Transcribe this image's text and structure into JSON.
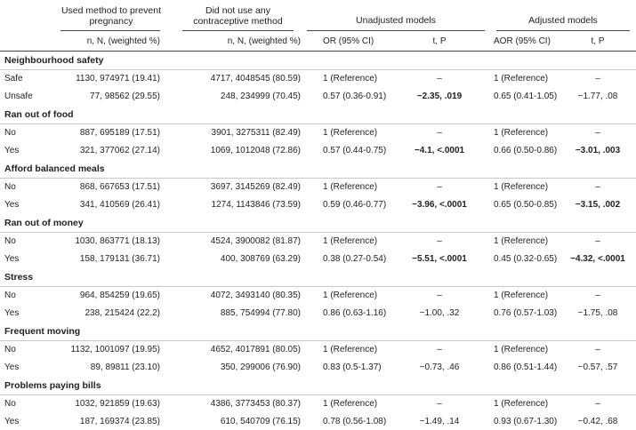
{
  "header": {
    "groups": [
      "Used method to prevent pregnancy",
      "Did not use any contraceptive method",
      "Unadjusted models",
      "Adjusted models"
    ],
    "columns": [
      "n, N, (weighted %)",
      "n, N, (weighted %)",
      "OR (95% CI)",
      "t, P",
      "AOR (95% CI)",
      "t, P"
    ]
  },
  "sections": [
    {
      "title": "Neighbourhood safety",
      "rows": [
        {
          "label": "Safe",
          "cells": [
            "1130, 974971 (19.41)",
            "4717, 4048545 (80.59)",
            "1 (Reference)",
            "–",
            "1 (Reference)",
            "–"
          ],
          "bold": []
        },
        {
          "label": "Unsafe",
          "cells": [
            "77, 98562 (29.55)",
            "248, 234999 (70.45)",
            "0.57 (0.36-0.91)",
            "−2.35, .019",
            "0.65 (0.41-1.05)",
            "−1.77, .08"
          ],
          "bold": [
            3
          ]
        }
      ]
    },
    {
      "title": "Ran out of food",
      "rows": [
        {
          "label": "No",
          "cells": [
            "887, 695189 (17.51)",
            "3901, 3275311 (82.49)",
            "1 (Reference)",
            "–",
            "1 (Reference)",
            "–"
          ],
          "bold": []
        },
        {
          "label": "Yes",
          "cells": [
            "321, 377062 (27.14)",
            "1069, 1012048 (72.86)",
            "0.57 (0.44-0.75)",
            "−4.1, <.0001",
            "0.66 (0.50-0.86)",
            "−3.01, .003"
          ],
          "bold": [
            3,
            5
          ]
        }
      ]
    },
    {
      "title": "Afford balanced meals",
      "rows": [
        {
          "label": "No",
          "cells": [
            "868, 667653 (17.51)",
            "3697, 3145269 (82.49)",
            "1 (Reference)",
            "–",
            "1 (Reference)",
            "–"
          ],
          "bold": []
        },
        {
          "label": "Yes",
          "cells": [
            "341, 410569 (26.41)",
            "1274, 1143846 (73.59)",
            "0.59 (0.46-0.77)",
            "−3.96, <.0001",
            "0.65 (0.50-0.85)",
            "−3.15, .002"
          ],
          "bold": [
            3,
            5
          ]
        }
      ]
    },
    {
      "title": "Ran out of money",
      "rows": [
        {
          "label": "No",
          "cells": [
            "1030, 863771 (18.13)",
            "4524, 3900082 (81.87)",
            "1 (Reference)",
            "–",
            "1 (Reference)",
            "–"
          ],
          "bold": []
        },
        {
          "label": "Yes",
          "cells": [
            "158, 179131 (36.71)",
            "400, 308769 (63.29)",
            "0.38 (0.27-0.54)",
            "−5.51, <.0001",
            "0.45 (0.32-0.65)",
            "−4.32, <.0001"
          ],
          "bold": [
            3,
            5
          ]
        }
      ]
    },
    {
      "title": "Stress",
      "rows": [
        {
          "label": "No",
          "cells": [
            "964, 854259 (19.65)",
            "4072, 3493140 (80.35)",
            "1 (Reference)",
            "–",
            "1 (Reference)",
            "–"
          ],
          "bold": []
        },
        {
          "label": "Yes",
          "cells": [
            "238, 215424 (22.2)",
            "885, 754994 (77.80)",
            "0.86 (0.63-1.16)",
            "−1.00, .32",
            "0.76 (0.57-1.03)",
            "−1.75, .08"
          ],
          "bold": []
        }
      ]
    },
    {
      "title": "Frequent moving",
      "rows": [
        {
          "label": "No",
          "cells": [
            "1132, 1001097 (19.95)",
            "4652, 4017891 (80.05)",
            "1 (Reference)",
            "–",
            "1 (Reference)",
            "–"
          ],
          "bold": []
        },
        {
          "label": "Yes",
          "cells": [
            "89, 89811 (23.10)",
            "350, 299006 (76.90)",
            "0.83 (0.5-1.37)",
            "−0.73, .46",
            "0.86 (0.51-1.44)",
            "−0.57, .57"
          ],
          "bold": []
        }
      ]
    },
    {
      "title": "Problems paying bills",
      "rows": [
        {
          "label": "No",
          "cells": [
            "1032, 921859 (19.63)",
            "4386, 3773453 (80.37)",
            "1 (Reference)",
            "–",
            "1 (Reference)",
            "–"
          ],
          "bold": []
        },
        {
          "label": "Yes",
          "cells": [
            "187, 169374 (23.85)",
            "610, 540709 (76.15)",
            "0.78 (0.56-1.08)",
            "−1.49, .14",
            "0.93 (0.67-1.30)",
            "−0.42, .68"
          ],
          "bold": []
        }
      ]
    }
  ]
}
